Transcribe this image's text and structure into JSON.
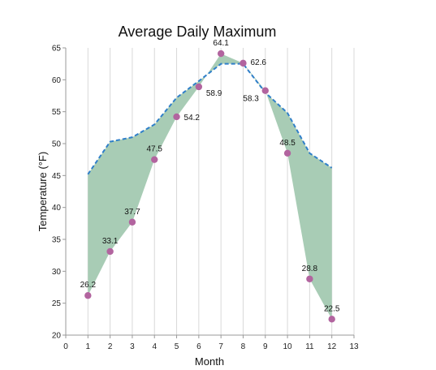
{
  "chart_data": {
    "type": "area",
    "title": "Average Daily Maximum",
    "xlabel": "Month",
    "ylabel": "Temperature (°F)",
    "xlim": [
      0,
      13
    ],
    "ylim": [
      20,
      65
    ],
    "x_ticks": [
      0,
      1,
      2,
      3,
      4,
      5,
      6,
      7,
      8,
      9,
      10,
      11,
      12,
      13
    ],
    "y_ticks": [
      20,
      25,
      30,
      35,
      40,
      45,
      50,
      55,
      60,
      65
    ],
    "grid": "vertical",
    "legend": "none",
    "series": [
      {
        "style": "dashed-line",
        "x": [
          1,
          2,
          3,
          4,
          5,
          6,
          7,
          8,
          9,
          10,
          11,
          12
        ],
        "values": [
          45.2,
          50.3,
          51.0,
          53.0,
          57.2,
          59.8,
          62.5,
          62.5,
          58.0,
          54.8,
          48.5,
          46.2
        ]
      },
      {
        "style": "points",
        "x": [
          1,
          2,
          3,
          4,
          5,
          6,
          7,
          8,
          9,
          10,
          11,
          12
        ],
        "values": [
          26.2,
          33.1,
          37.7,
          47.5,
          54.2,
          58.9,
          64.1,
          62.6,
          58.3,
          48.5,
          28.8,
          22.5
        ],
        "labels": [
          "26.2",
          "33.1",
          "37.7",
          "47.5",
          "54.2",
          "58.9",
          "64.1",
          "62.6",
          "58.3",
          "48.5",
          "28.8",
          "22.5"
        ]
      }
    ],
    "colors": {
      "fill": "#a8ccb5",
      "line": "#2f7fc9",
      "point": "#b2649f"
    }
  }
}
